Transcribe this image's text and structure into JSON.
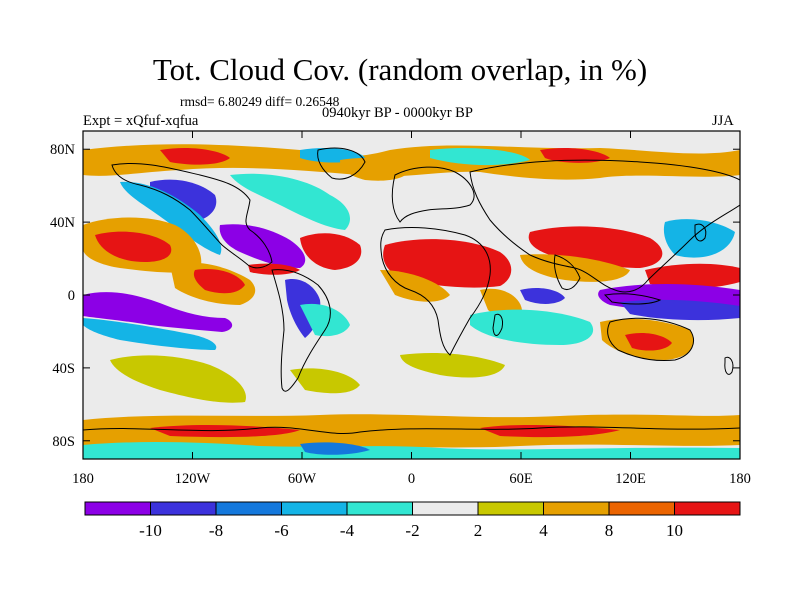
{
  "title": "Tot. Cloud Cov. (random overlap, in %)",
  "stats": "rmsd= 6.80249 diff= 0.26548",
  "period": "0940kyr BP - 0000kyr BP",
  "experiment": "Expt = xQfuf-xqfua",
  "season": "JJA",
  "axes": {
    "lat_labels": [
      "80N",
      "40N",
      "0",
      "40S",
      "80S"
    ],
    "lat_values": [
      80,
      40,
      0,
      -40,
      -80
    ],
    "lon_labels": [
      "180",
      "120W",
      "60W",
      "0",
      "60E",
      "120E",
      "180"
    ],
    "lon_values": [
      -180,
      -120,
      -60,
      0,
      60,
      120,
      180
    ]
  },
  "colorbar": {
    "labels": [
      "-10",
      "-8",
      "-6",
      "-4",
      "-2",
      "2",
      "4",
      "8",
      "10"
    ],
    "colors": [
      "#8c00e6",
      "#3c32dc",
      "#1478dc",
      "#14b4e6",
      "#32e6d2",
      "#ebebeb",
      "#c8c800",
      "#e6a000",
      "#eb6400",
      "#e61414"
    ]
  },
  "map_colors": {
    "purple": "#8c00e6",
    "blue": "#3c32dc",
    "mid_blue": "#1478dc",
    "light_blue": "#14b4e6",
    "cyan": "#32e6d2",
    "neutral": "#ebebeb",
    "yellow": "#c8c800",
    "orange": "#e6a000",
    "dark_orange": "#eb6400",
    "red": "#e61414",
    "coast": "#000000"
  }
}
